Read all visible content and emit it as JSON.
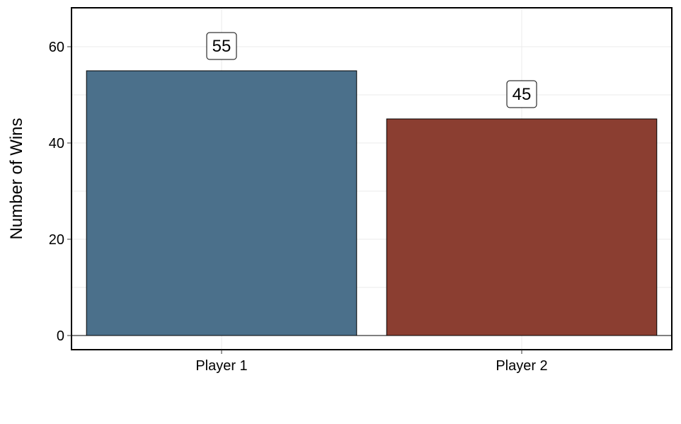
{
  "chart_data": {
    "type": "bar",
    "categories": [
      "Player 1",
      "Player 2"
    ],
    "values": [
      55,
      45
    ],
    "data_labels": [
      "55",
      "45"
    ],
    "colors": [
      "#4b708b",
      "#8b3e31"
    ],
    "title": "",
    "xlabel": "",
    "ylabel": "Number of Wins",
    "ylim": [
      -3,
      68
    ],
    "yticks": [
      0,
      20,
      40,
      60
    ],
    "ytick_labels": [
      "0",
      "20",
      "40",
      "60"
    ],
    "grid": true,
    "legend": "none"
  }
}
